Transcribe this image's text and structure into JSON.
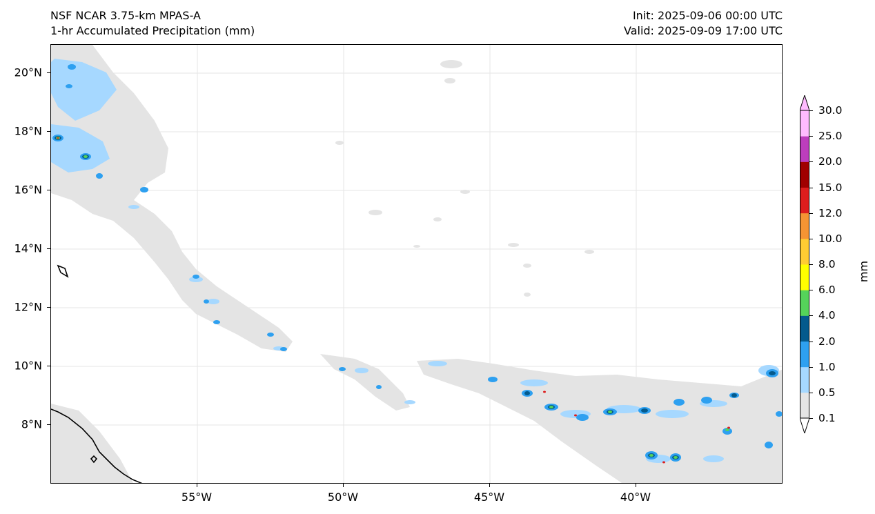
{
  "header": {
    "model": "NSF NCAR 3.75-km MPAS-A",
    "field": "1-hr Accumulated Precipitation (mm)",
    "init": "Init: 2025-09-06 00:00 UTC",
    "valid": "Valid: 2025-09-09 17:00 UTC"
  },
  "map": {
    "lon_range": [
      -60,
      -35
    ],
    "lat_range": [
      6,
      21
    ],
    "lat_ticks": [
      {
        "value": 20,
        "label": "20°N"
      },
      {
        "value": 18,
        "label": "18°N"
      },
      {
        "value": 16,
        "label": "16°N"
      },
      {
        "value": 14,
        "label": "14°N"
      },
      {
        "value": 12,
        "label": "12°N"
      },
      {
        "value": 10,
        "label": "10°N"
      },
      {
        "value": 8,
        "label": "8°N"
      }
    ],
    "lon_ticks": [
      {
        "value": -55,
        "label": "55°W"
      },
      {
        "value": -50,
        "label": "50°W"
      },
      {
        "value": -45,
        "label": "45°W"
      },
      {
        "value": -40,
        "label": "40°W"
      }
    ]
  },
  "colorbar": {
    "unit": "mm",
    "levels": [
      "0.1",
      "0.5",
      "1.0",
      "2.0",
      "4.0",
      "6.0",
      "8.0",
      "10.0",
      "12.0",
      "15.0",
      "20.0",
      "25.0",
      "30.0"
    ],
    "colors": [
      "#e5e5e5",
      "#a6d8ff",
      "#2ea0f0",
      "#045a8d",
      "#55d35a",
      "#ffff00",
      "#ffcc33",
      "#f59433",
      "#dd1e1e",
      "#a00000",
      "#bd3dbd",
      "#ffbbff"
    ]
  }
}
